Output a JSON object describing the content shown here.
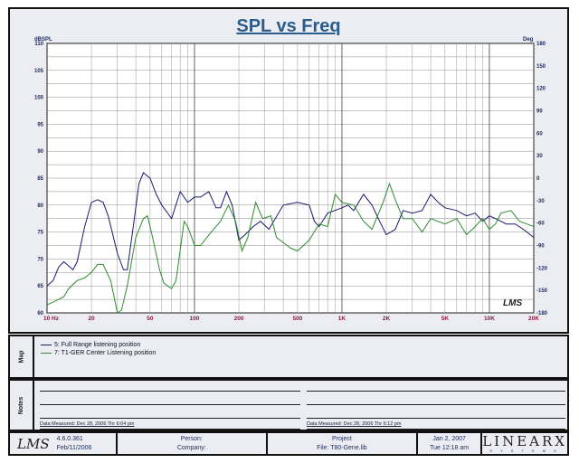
{
  "chart_data": {
    "type": "line",
    "title": "SPL vs Freq",
    "ylabel": "dBSPL",
    "y2label": "Deg",
    "xscale": "log",
    "xlim": [
      10,
      20000
    ],
    "ylim": [
      60,
      110
    ],
    "y2lim": [
      -180,
      180
    ],
    "xticks": [
      {
        "v": 10,
        "l": "10  Hz"
      },
      {
        "v": 20,
        "l": "20"
      },
      {
        "v": 50,
        "l": "50"
      },
      {
        "v": 100,
        "l": "100"
      },
      {
        "v": 200,
        "l": "200"
      },
      {
        "v": 500,
        "l": "500"
      },
      {
        "v": 1000,
        "l": "1K"
      },
      {
        "v": 2000,
        "l": "2K"
      },
      {
        "v": 5000,
        "l": "5K"
      },
      {
        "v": 10000,
        "l": "10K"
      },
      {
        "v": 20000,
        "l": "20K"
      }
    ],
    "yticks": [
      "110",
      "105",
      "100",
      "95",
      "90",
      "85",
      "80",
      "75",
      "70",
      "65",
      "60"
    ],
    "y2ticks": [
      "180",
      "150",
      "120",
      "90",
      "60",
      "30",
      "0",
      "-30",
      "-60",
      "-90",
      "-120",
      "-150",
      "-180"
    ],
    "watermark": "LMS",
    "series": [
      {
        "name": "5: Full Range listening position",
        "color": "#1a1a6e",
        "points": [
          [
            10,
            65
          ],
          [
            11,
            66
          ],
          [
            12,
            68.5
          ],
          [
            13,
            69.5
          ],
          [
            15,
            68
          ],
          [
            16,
            69.5
          ],
          [
            18,
            76
          ],
          [
            20,
            80.5
          ],
          [
            22,
            81
          ],
          [
            24,
            80.5
          ],
          [
            26,
            78
          ],
          [
            30,
            71
          ],
          [
            33,
            68
          ],
          [
            35,
            68
          ],
          [
            38,
            75
          ],
          [
            42,
            84
          ],
          [
            45,
            86
          ],
          [
            50,
            85
          ],
          [
            55,
            82
          ],
          [
            60,
            80
          ],
          [
            70,
            77.5
          ],
          [
            80,
            82.5
          ],
          [
            90,
            80.5
          ],
          [
            100,
            81.5
          ],
          [
            110,
            81.5
          ],
          [
            125,
            82.5
          ],
          [
            140,
            79.5
          ],
          [
            150,
            79.5
          ],
          [
            165,
            82.5
          ],
          [
            180,
            80
          ],
          [
            200,
            73.5
          ],
          [
            220,
            74.5
          ],
          [
            250,
            76
          ],
          [
            280,
            77
          ],
          [
            320,
            75.5
          ],
          [
            400,
            80
          ],
          [
            500,
            80.5
          ],
          [
            600,
            80
          ],
          [
            650,
            77
          ],
          [
            700,
            76
          ],
          [
            800,
            78.5
          ],
          [
            1000,
            79.5
          ],
          [
            1100,
            80
          ],
          [
            1200,
            79
          ],
          [
            1400,
            82
          ],
          [
            1600,
            80
          ],
          [
            1800,
            77
          ],
          [
            2000,
            74.5
          ],
          [
            2300,
            75.5
          ],
          [
            2600,
            79
          ],
          [
            3000,
            78.5
          ],
          [
            3500,
            79
          ],
          [
            4000,
            82
          ],
          [
            4500,
            80.5
          ],
          [
            5000,
            79.5
          ],
          [
            6000,
            79
          ],
          [
            7000,
            78
          ],
          [
            8000,
            78.5
          ],
          [
            9000,
            77
          ],
          [
            10000,
            78
          ],
          [
            11000,
            77.5
          ],
          [
            13000,
            76.5
          ],
          [
            15000,
            76.5
          ],
          [
            17000,
            75.5
          ],
          [
            20000,
            74
          ]
        ]
      },
      {
        "name": "7: T1-GER Center Listening position",
        "color": "#2e8b2e",
        "points": [
          [
            10,
            61.5
          ],
          [
            11,
            62
          ],
          [
            12,
            62.5
          ],
          [
            13,
            63
          ],
          [
            14,
            64.5
          ],
          [
            16,
            66
          ],
          [
            18,
            66.5
          ],
          [
            20,
            67.5
          ],
          [
            22,
            69
          ],
          [
            24,
            69
          ],
          [
            27,
            66
          ],
          [
            30,
            60
          ],
          [
            32,
            60.5
          ],
          [
            35,
            65
          ],
          [
            40,
            74
          ],
          [
            45,
            77.5
          ],
          [
            48,
            78
          ],
          [
            52,
            74
          ],
          [
            58,
            68
          ],
          [
            62,
            65.5
          ],
          [
            70,
            64.5
          ],
          [
            75,
            66
          ],
          [
            85,
            77
          ],
          [
            90,
            76
          ],
          [
            100,
            72.5
          ],
          [
            110,
            72.5
          ],
          [
            130,
            75
          ],
          [
            150,
            77
          ],
          [
            170,
            80
          ],
          [
            190,
            77
          ],
          [
            210,
            71.5
          ],
          [
            230,
            74
          ],
          [
            260,
            80.5
          ],
          [
            290,
            77.5
          ],
          [
            330,
            78
          ],
          [
            360,
            74
          ],
          [
            450,
            72
          ],
          [
            500,
            71.5
          ],
          [
            600,
            73.5
          ],
          [
            700,
            76.5
          ],
          [
            800,
            76
          ],
          [
            900,
            82
          ],
          [
            1000,
            80.5
          ],
          [
            1200,
            80
          ],
          [
            1400,
            77
          ],
          [
            1600,
            75.5
          ],
          [
            1900,
            80.5
          ],
          [
            2100,
            84
          ],
          [
            2300,
            81
          ],
          [
            2600,
            77.5
          ],
          [
            3000,
            77.5
          ],
          [
            3500,
            75
          ],
          [
            4000,
            77.5
          ],
          [
            5000,
            76.5
          ],
          [
            6000,
            77.5
          ],
          [
            7000,
            74.5
          ],
          [
            8000,
            76
          ],
          [
            9000,
            77.5
          ],
          [
            10000,
            75.5
          ],
          [
            11000,
            76.5
          ],
          [
            12000,
            78.5
          ],
          [
            14000,
            79
          ],
          [
            16000,
            77
          ],
          [
            18000,
            76.5
          ],
          [
            20000,
            76
          ]
        ]
      }
    ]
  },
  "map": {
    "label": "Map",
    "legend": [
      "5: Full Range listening position",
      "7: T1-GER Center Listening position"
    ]
  },
  "notes": {
    "label": "Notes",
    "measured_left": "Data Measured: Dec 28, 2006  Thr  6:04 pm",
    "measured_right": "Data Measured: Dec 28, 2006  Thr  6:12 pm"
  },
  "footer": {
    "logo": "LMS",
    "version": "4.6.0.361",
    "build_date": "Feb/11/2006",
    "person": "Person:",
    "company": "Company:",
    "project": "Project",
    "file": "File: T80-Gene.lib",
    "date": "Jan 2, 2007",
    "time": "Tue 12:18 am",
    "brand": "LINEARX",
    "brand_sub": "S Y S T E M S"
  }
}
